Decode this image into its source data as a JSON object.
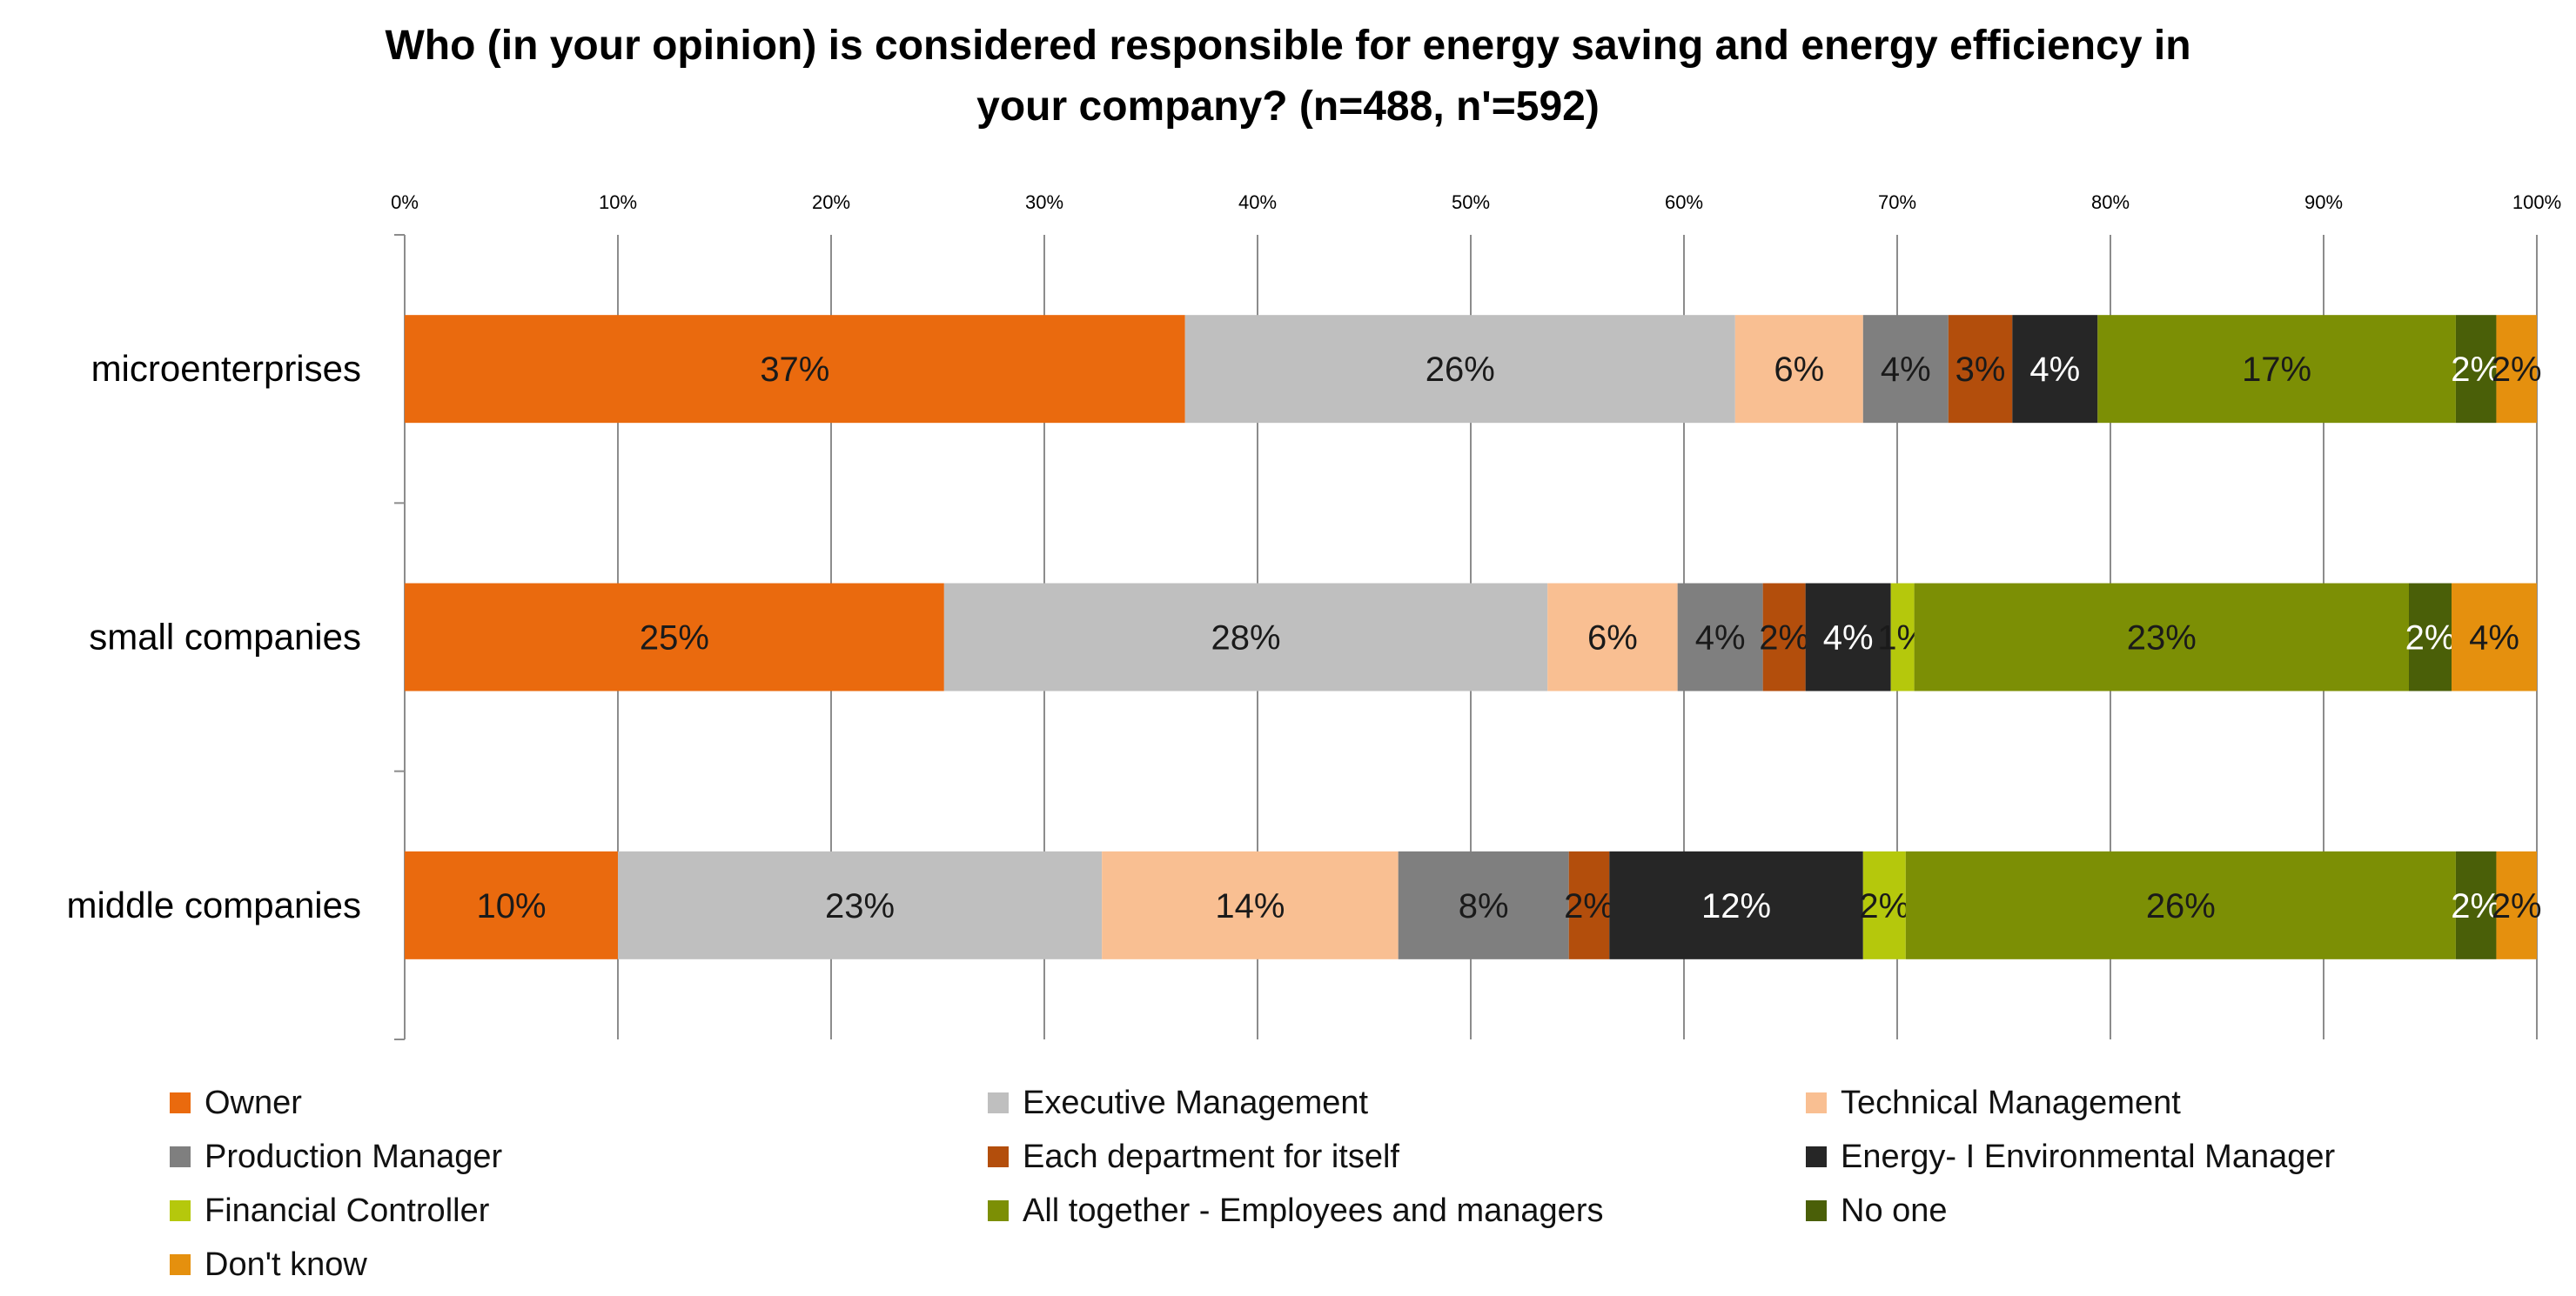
{
  "chart_data": {
    "type": "bar",
    "orientation": "horizontal",
    "stacked": true,
    "title": "Who (in your opinion) is considered responsible for energy saving and energy efficiency  in your company? (n=488, n'=592)",
    "title_lines": [
      "Who (in your opinion) is considered responsible for energy saving and energy efficiency  in",
      "your company? (n=488, n'=592)"
    ],
    "categories": [
      "microenterprises",
      "small companies",
      "middle companies"
    ],
    "xlim": [
      0,
      100
    ],
    "x_ticks": [
      "0%",
      "10%",
      "20%",
      "30%",
      "40%",
      "50%",
      "60%",
      "70%",
      "80%",
      "90%",
      "100%"
    ],
    "x_axis_position": "top",
    "grid": true,
    "legend_position": "bottom",
    "series": [
      {
        "name": "Owner",
        "color": "#EA6A0E",
        "label_color": "#1a1a1a",
        "values": [
          36.6,
          25.3,
          10.0
        ],
        "labels": [
          "37%",
          "25%",
          "10%"
        ]
      },
      {
        "name": "Executive Management",
        "color": "#BFBFBF",
        "label_color": "#1a1a1a",
        "values": [
          25.8,
          28.3,
          22.7
        ],
        "labels": [
          "26%",
          "28%",
          "23%"
        ]
      },
      {
        "name": "Technical Management",
        "color": "#F9BF92",
        "label_color": "#1a1a1a",
        "values": [
          6.0,
          6.1,
          13.9
        ],
        "labels": [
          "6%",
          "6%",
          "14%"
        ]
      },
      {
        "name": "Production Manager",
        "color": "#7F7F7F",
        "label_color": "#1a1a1a",
        "values": [
          4.0,
          4.0,
          8.0
        ],
        "labels": [
          "4%",
          "4%",
          "8%"
        ]
      },
      {
        "name": "Each department for itself",
        "color": "#B34E0C",
        "label_color": "#1a1a1a",
        "values": [
          3.0,
          2.0,
          1.9
        ],
        "labels": [
          "3%",
          "2%",
          "2%"
        ]
      },
      {
        "name": "Energy- I Environmental Manager",
        "color": "#262626",
        "label_color": "#ffffff",
        "values": [
          4.0,
          4.0,
          11.9
        ],
        "labels": [
          "4%",
          "4%",
          "12%"
        ]
      },
      {
        "name": "Financial Controller",
        "color": "#B5C80C",
        "label_color": "#1a1a1a",
        "values": [
          0,
          1.1,
          2.0
        ],
        "labels": [
          "",
          "1%",
          "2%"
        ]
      },
      {
        "name": "All together - Employees and managers",
        "color": "#7C8F05",
        "label_color": "#1a1a1a",
        "values": [
          16.8,
          23.2,
          25.8
        ],
        "labels": [
          "17%",
          "23%",
          "26%"
        ]
      },
      {
        "name": "No one",
        "color": "#4A5F08",
        "label_color": "#ffffff",
        "values": [
          1.9,
          2.0,
          1.9
        ],
        "labels": [
          "2%",
          "2%",
          "2%"
        ]
      },
      {
        "name": "Don't know",
        "color": "#E5900E",
        "label_color": "#1a1a1a",
        "values": [
          1.9,
          4.0,
          1.9
        ],
        "labels": [
          "2%",
          "4%",
          "2%"
        ]
      }
    ]
  }
}
